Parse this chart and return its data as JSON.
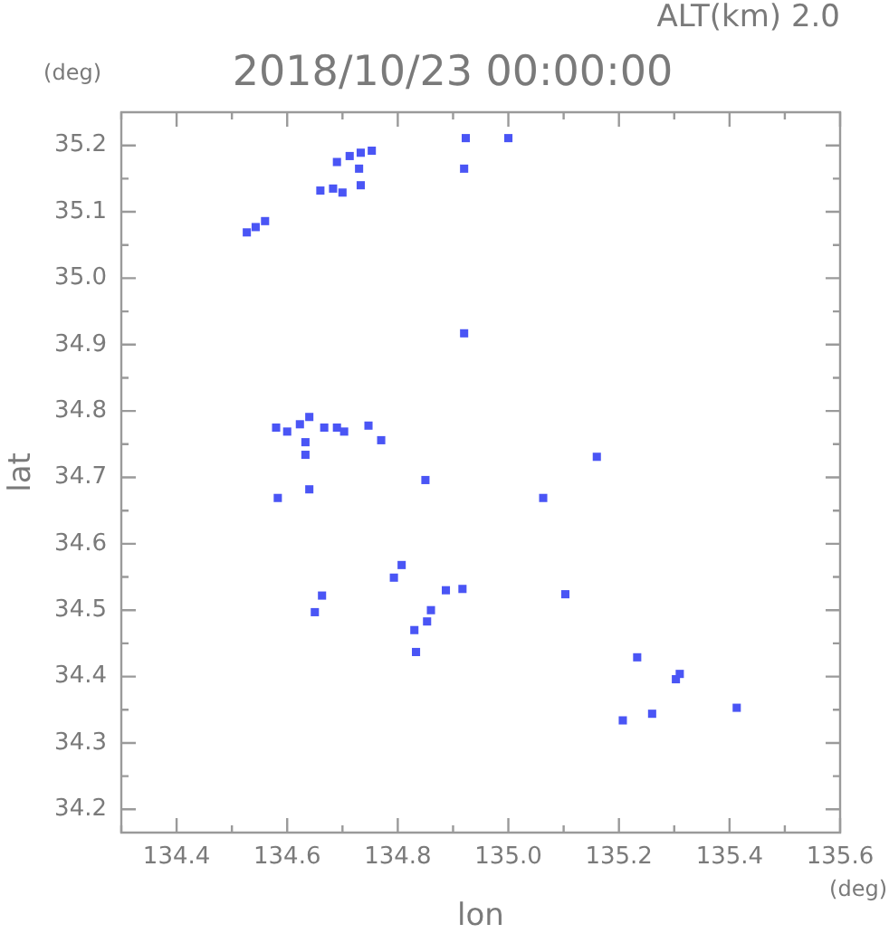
{
  "chart_data": {
    "type": "scatter",
    "title": "2018/10/23 00:00:00",
    "subtitle": "ALT(km) 2.0",
    "xlabel": "lon",
    "ylabel": "lat",
    "annotations": [
      "(deg)",
      "(deg)"
    ],
    "xlim": [
      134.3,
      135.6
    ],
    "xticks": [
      {
        "value": 134.3,
        "label": null
      },
      134.4,
      {
        "value": 134.5,
        "label": null
      },
      134.6,
      {
        "value": 134.7,
        "label": null
      },
      134.8,
      {
        "value": 134.9,
        "label": null
      },
      {
        "value": 135,
        "label": "135.0"
      },
      {
        "value": 135.1,
        "label": null
      },
      135.2,
      {
        "value": 135.3,
        "label": null
      },
      135.4,
      {
        "value": 135.5,
        "label": null
      },
      135.6
    ],
    "ylim": [
      34.165,
      35.25
    ],
    "yticks": [
      34.2,
      {
        "value": 34.25,
        "label": null
      },
      34.3,
      {
        "value": 34.35,
        "label": null
      },
      34.4,
      {
        "value": 34.45,
        "label": null
      },
      34.5,
      {
        "value": 34.55,
        "label": null
      },
      34.6,
      {
        "value": 34.65,
        "label": null
      },
      34.7,
      {
        "value": 34.75,
        "label": null
      },
      34.8,
      {
        "value": 34.85,
        "label": null
      },
      34.9,
      {
        "value": 34.95,
        "label": null
      },
      {
        "value": 35,
        "label": "35.0"
      },
      {
        "value": 35.05,
        "label": null
      },
      35.1,
      {
        "value": 35.15,
        "label": null
      },
      35.2
    ],
    "marker": "square",
    "legend": false,
    "series": [
      {
        "color": "#4a55f5",
        "x": [
          134.527,
          134.543,
          134.56,
          134.69,
          134.713,
          134.733,
          134.753,
          134.66,
          134.683,
          134.7,
          134.73,
          134.733,
          134.923,
          135.0,
          134.92,
          134.92,
          134.58,
          134.6,
          134.623,
          134.64,
          134.667,
          134.69,
          134.703,
          134.747,
          134.77,
          134.633,
          134.633,
          134.583,
          134.64,
          134.85,
          135.063,
          135.16,
          134.807,
          134.793,
          134.917,
          134.887,
          135.103,
          134.663,
          134.65,
          134.86,
          134.83,
          134.853,
          134.833,
          135.233,
          135.31,
          135.303,
          135.207,
          135.26,
          135.413
        ],
        "values": [
          35.069,
          35.077,
          35.086,
          35.175,
          35.184,
          35.189,
          35.192,
          35.132,
          35.135,
          35.129,
          35.165,
          35.14,
          35.211,
          35.211,
          35.165,
          34.917,
          34.775,
          34.769,
          34.78,
          34.791,
          34.775,
          34.775,
          34.769,
          34.778,
          34.756,
          34.753,
          34.734,
          34.669,
          34.682,
          34.696,
          34.669,
          34.731,
          34.568,
          34.549,
          34.532,
          34.53,
          34.524,
          34.522,
          34.497,
          34.5,
          34.47,
          34.483,
          34.437,
          34.429,
          34.404,
          34.396,
          34.334,
          34.344,
          34.353
        ]
      }
    ]
  }
}
